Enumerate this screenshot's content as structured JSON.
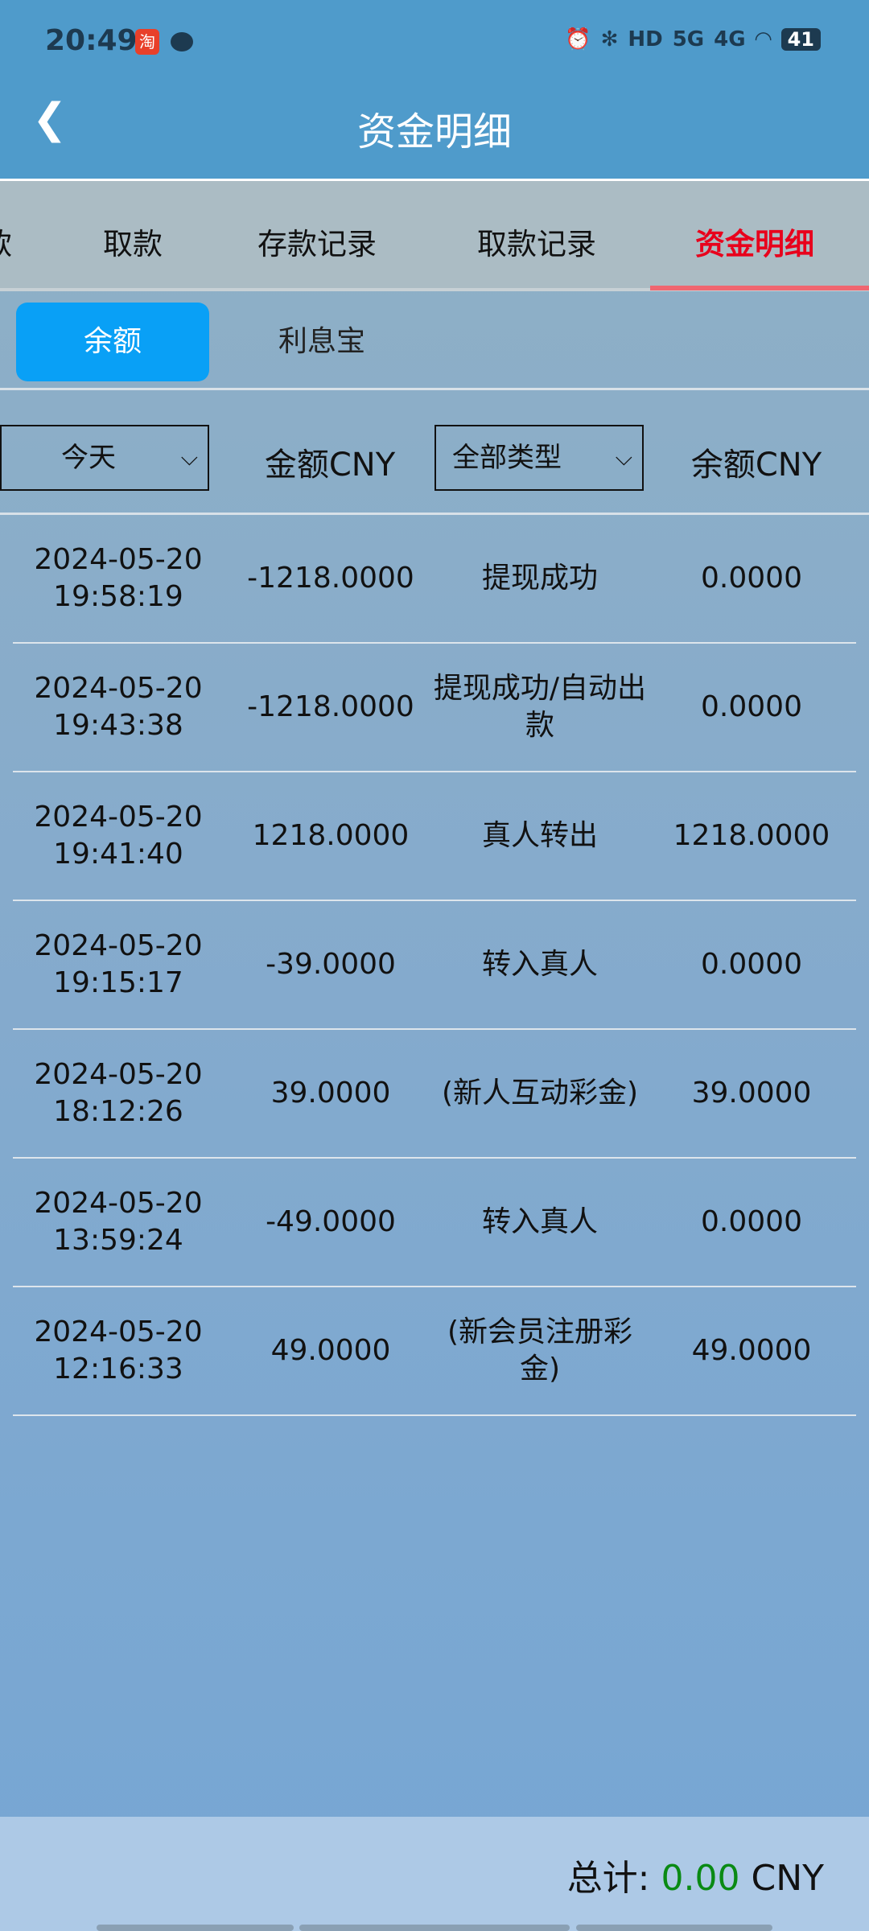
{
  "status": {
    "time": "20:49",
    "app_icon": "taobao-icon",
    "icons": [
      "alarm-icon",
      "bluetooth-icon",
      "hd-icon",
      "5g-signal-icon",
      "4g-signal-icon",
      "wifi-icon"
    ],
    "network_5g": "5G",
    "network_4g": "4G",
    "hd": "HD",
    "battery": "41"
  },
  "header": {
    "title": "资金明细"
  },
  "tabs": [
    {
      "label": "款"
    },
    {
      "label": "取款"
    },
    {
      "label": "存款记录"
    },
    {
      "label": "取款记录"
    },
    {
      "label": "资金明细",
      "active": true
    }
  ],
  "subtabs": [
    {
      "label": "余额",
      "active": true
    },
    {
      "label": "利息宝"
    }
  ],
  "filters": {
    "date": "今天",
    "amount_header": "金额CNY",
    "type": "全部类型",
    "balance_header": "余额CNY"
  },
  "rows": [
    {
      "date": "2024-05-20",
      "time": "19:58:19",
      "amount": "-1218.0000",
      "type": "提现成功",
      "balance": "0.0000"
    },
    {
      "date": "2024-05-20",
      "time": "19:43:38",
      "amount": "-1218.0000",
      "type": "提现成功/自动出款",
      "balance": "0.0000"
    },
    {
      "date": "2024-05-20",
      "time": "19:41:40",
      "amount": "1218.0000",
      "type": "真人转出",
      "balance": "1218.0000"
    },
    {
      "date": "2024-05-20",
      "time": "19:15:17",
      "amount": "-39.0000",
      "type": "转入真人",
      "balance": "0.0000"
    },
    {
      "date": "2024-05-20",
      "time": "18:12:26",
      "amount": "39.0000",
      "type": "(新人互动彩金)",
      "balance": "39.0000"
    },
    {
      "date": "2024-05-20",
      "time": "13:59:24",
      "amount": "-49.0000",
      "type": "转入真人",
      "balance": "0.0000"
    },
    {
      "date": "2024-05-20",
      "time": "12:16:33",
      "amount": "49.0000",
      "type": "(新会员注册彩金)",
      "balance": "49.0000"
    }
  ],
  "footer": {
    "label": "总计:",
    "value": "0.00",
    "currency": "CNY"
  },
  "colors": {
    "header": "#4f9bcb",
    "active_tab": "#e8001c",
    "subtab_active": "#09a0f6",
    "total_value": "#0a8a14"
  }
}
